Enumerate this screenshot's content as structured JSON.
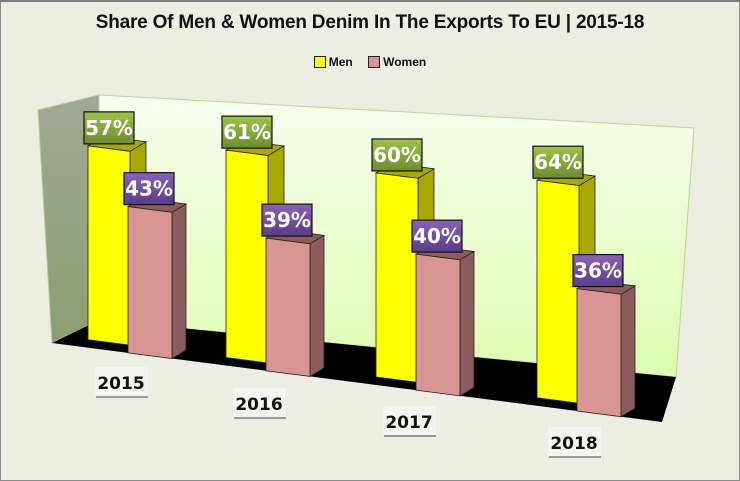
{
  "chart_data": {
    "type": "bar",
    "style": "3d-clustered-column",
    "title": "Share Of Men & Women Denim In The Exports To EU | 2015-18",
    "xlabel": "",
    "ylabel": "",
    "categories": [
      "2015",
      "2016",
      "2017",
      "2018"
    ],
    "series": [
      {
        "name": "Men",
        "values": [
          57,
          61,
          60,
          64
        ],
        "labels": [
          "57%",
          "61%",
          "60%",
          "64%"
        ],
        "color": "#ffff00",
        "side_color": "#a8a800",
        "label_bg": "#7f9f3a"
      },
      {
        "name": "Women",
        "values": [
          43,
          39,
          40,
          36
        ],
        "labels": [
          "43%",
          "39%",
          "40%",
          "36%"
        ],
        "color": "#d99594",
        "side_color": "#8c5c5c",
        "label_bg": "#6a4c9c"
      }
    ],
    "ylim": [
      0,
      100
    ],
    "grid": false,
    "legend_position": "top",
    "colors": {
      "background": "#ebeee0",
      "back_wall": "#eefcd8",
      "side_wall": "#94a37a",
      "floor": "#000000"
    }
  }
}
